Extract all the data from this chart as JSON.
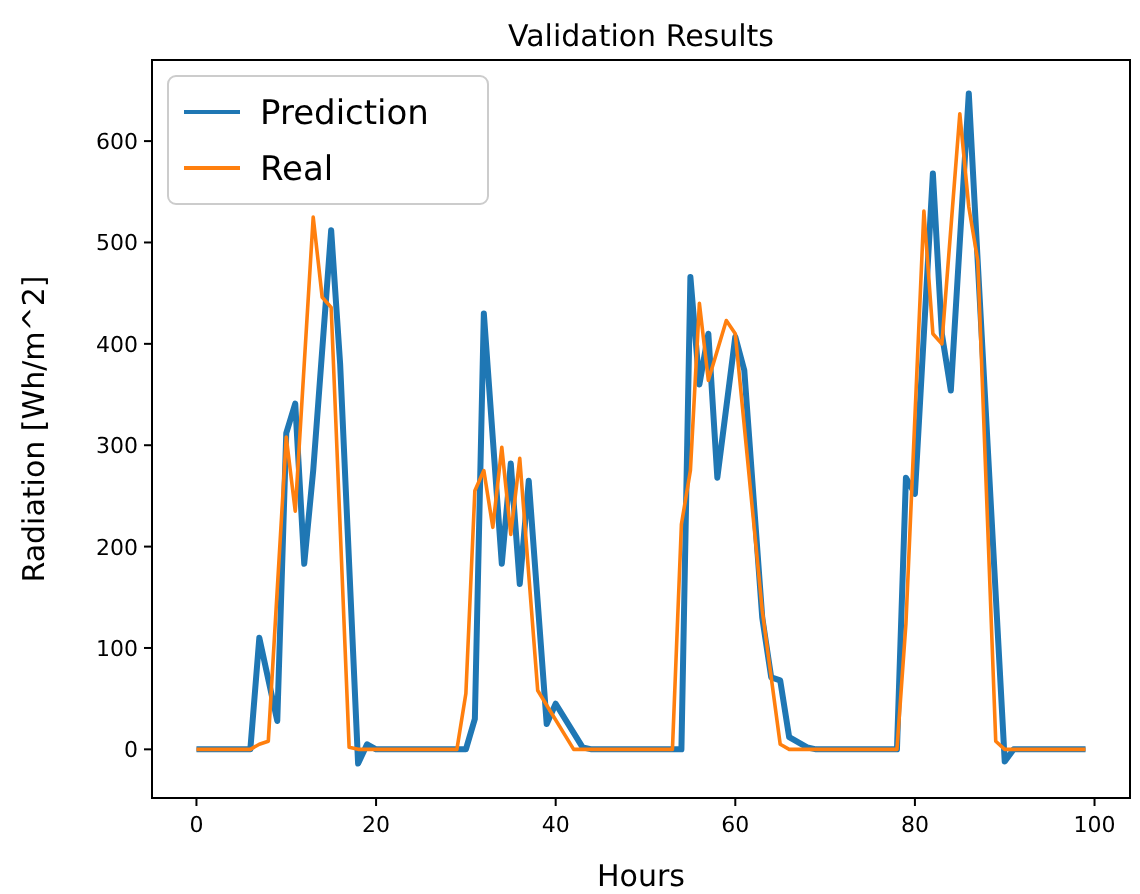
{
  "chart_data": {
    "type": "line",
    "title": "Validation Results",
    "xlabel": "Hours",
    "ylabel": "Radiation [Wh/m^2]",
    "xlim": [
      -4.95,
      103.95
    ],
    "ylim": [
      -48,
      680
    ],
    "xticks": [
      0,
      20,
      40,
      60,
      80,
      100
    ],
    "yticks": [
      0,
      100,
      200,
      300,
      400,
      500,
      600
    ],
    "grid": false,
    "legend": "top left",
    "line_style": "solid",
    "marker": "none",
    "series": [
      {
        "name": "Prediction",
        "color": "#1f77b4",
        "x": [
          0,
          6,
          7,
          9,
          10,
          11,
          12,
          13,
          15,
          16,
          18,
          19,
          20,
          30,
          31,
          32,
          34,
          35,
          36,
          37,
          39,
          40,
          43,
          44,
          54,
          55,
          56,
          57,
          58,
          60,
          61,
          63,
          64,
          65,
          66,
          68,
          69,
          78,
          79,
          80,
          82,
          83,
          84,
          86,
          87,
          90,
          91,
          99
        ],
        "values": [
          0,
          0,
          110,
          28,
          312,
          341,
          183,
          275,
          512,
          380,
          -14,
          5,
          0,
          0,
          30,
          430,
          183,
          282,
          163,
          265,
          25,
          45,
          2,
          0,
          0,
          466,
          360,
          410,
          268,
          407,
          374,
          130,
          71,
          68,
          12,
          2,
          0,
          0,
          268,
          252,
          568,
          410,
          354,
          647,
          480,
          -12,
          0,
          0
        ]
      },
      {
        "name": "Real",
        "color": "#ff7f0e",
        "x": [
          0,
          6,
          7,
          8,
          10,
          11,
          13,
          14,
          15,
          17,
          18,
          29,
          30,
          31,
          32,
          33,
          34,
          35,
          36,
          38,
          42,
          53,
          54,
          55,
          56,
          57,
          59,
          60,
          63,
          65,
          66,
          78,
          79,
          81,
          82,
          83,
          85,
          86,
          87,
          89,
          90,
          99
        ],
        "values": [
          0,
          0,
          5,
          8,
          308,
          235,
          525,
          446,
          436,
          2,
          0,
          0,
          55,
          255,
          275,
          219,
          298,
          212,
          287,
          58,
          0,
          0,
          222,
          275,
          440,
          364,
          423,
          410,
          137,
          5,
          0,
          0,
          124,
          531,
          410,
          400,
          627,
          535,
          482,
          8,
          0,
          0
        ]
      }
    ]
  }
}
